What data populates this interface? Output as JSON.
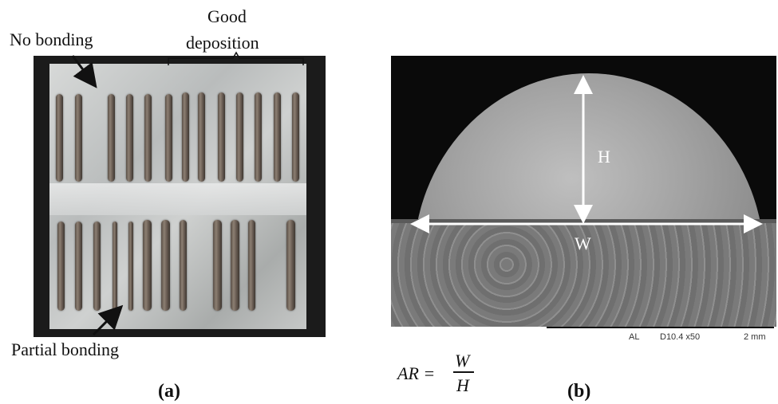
{
  "panel_a": {
    "label": "(a)",
    "annotations": {
      "no_bonding": "No bonding",
      "good_deposition_line1": "Good",
      "good_deposition_line2": "deposition",
      "partial_bonding": "Partial bonding"
    }
  },
  "panel_b": {
    "label": "(b)",
    "dimension_labels": {
      "height": "H",
      "width": "W"
    },
    "scale_bar_text": {
      "left": "AL",
      "middle": "D10.4 x50",
      "right": "2 mm"
    },
    "equation": {
      "lhs": "AR =",
      "numerator": "W",
      "denominator": "H"
    }
  }
}
